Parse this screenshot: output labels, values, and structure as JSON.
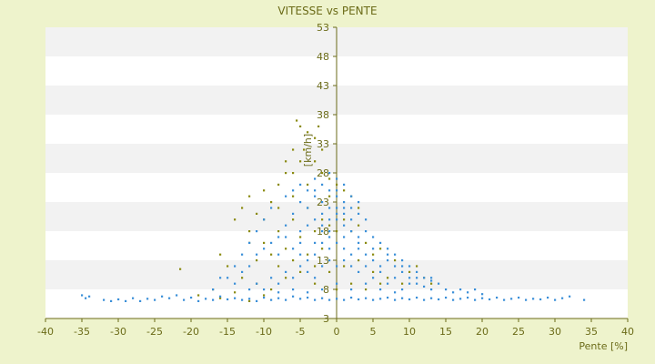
{
  "chart_data": {
    "type": "scatter",
    "title": "VITESSE vs PENTE",
    "xlabel": "Pente [%]",
    "ylabel": "[km/h]",
    "xlim": [
      -40,
      40
    ],
    "ylim": [
      3,
      53
    ],
    "x_ticks": [
      "-40",
      "-35",
      "-30",
      "-25",
      "-20",
      "-15",
      "-10",
      "-5",
      "0",
      "5",
      "10",
      "15",
      "20",
      "25",
      "30",
      "35",
      "40"
    ],
    "y_ticks": [
      "3",
      "8",
      "13",
      "18",
      "23",
      "28",
      "33",
      "38",
      "43",
      "48",
      "53"
    ],
    "grid": "horizontal-bands",
    "colors": {
      "background": "#eef3cc",
      "plot_white": "#ffffff",
      "plot_band": "#f2f2f2",
      "axis": "#6b6b18",
      "series_blue": "#3a8fd8",
      "series_olive": "#8a8a10"
    },
    "series": [
      {
        "color": "#8a8a10",
        "points": [
          [
            -5.5,
            37
          ],
          [
            -5,
            36
          ],
          [
            -4,
            35
          ],
          [
            -3,
            34
          ],
          [
            -2.5,
            36
          ],
          [
            -4.5,
            32
          ],
          [
            -5,
            30
          ],
          [
            -6,
            28
          ],
          [
            -7,
            28
          ],
          [
            -3,
            30
          ],
          [
            -8,
            26
          ],
          [
            -10,
            25
          ],
          [
            -12,
            24
          ],
          [
            -13,
            22
          ],
          [
            -9,
            23
          ],
          [
            -11,
            21
          ],
          [
            -6,
            24
          ],
          [
            -4,
            26
          ],
          [
            -2,
            28
          ],
          [
            -1,
            27
          ],
          [
            0,
            26
          ],
          [
            1,
            25
          ],
          [
            2,
            24
          ],
          [
            3,
            22
          ],
          [
            -14,
            20
          ],
          [
            -12,
            18
          ],
          [
            -10,
            16
          ],
          [
            -8,
            18
          ],
          [
            -6,
            20
          ],
          [
            -4,
            22
          ],
          [
            -2,
            20
          ],
          [
            0,
            18
          ],
          [
            2,
            18
          ],
          [
            4,
            16
          ],
          [
            6,
            15
          ],
          [
            8,
            13
          ],
          [
            10,
            11
          ],
          [
            12,
            10
          ],
          [
            -8,
            12
          ],
          [
            -6,
            13
          ],
          [
            -4,
            14
          ],
          [
            -2,
            15
          ],
          [
            -15,
            12
          ],
          [
            -13,
            10
          ],
          [
            -11,
            9
          ],
          [
            -9,
            8
          ],
          [
            -7,
            10
          ],
          [
            -5,
            11
          ],
          [
            -3,
            12
          ],
          [
            -1,
            11
          ],
          [
            1,
            12
          ],
          [
            3,
            13
          ],
          [
            5,
            11
          ],
          [
            7,
            10
          ],
          [
            9,
            9
          ],
          [
            -21.5,
            11.5
          ],
          [
            -19,
            7
          ],
          [
            -17,
            8
          ],
          [
            -16,
            6.5
          ],
          [
            -14,
            7.5
          ],
          [
            -12,
            6
          ],
          [
            -10,
            7
          ],
          [
            -3,
            9
          ],
          [
            0,
            8
          ],
          [
            2,
            9
          ],
          [
            4,
            8
          ],
          [
            6,
            9
          ],
          [
            -7,
            15
          ],
          [
            -9,
            14
          ],
          [
            -11,
            13
          ],
          [
            -5,
            17
          ],
          [
            -3,
            18
          ],
          [
            -1,
            19
          ],
          [
            1,
            20
          ],
          [
            3,
            19
          ],
          [
            5,
            14
          ],
          [
            -6,
            32
          ],
          [
            -7,
            30
          ],
          [
            -2,
            32
          ],
          [
            -1,
            24
          ],
          [
            11,
            12
          ],
          [
            13,
            9
          ],
          [
            -10,
            20
          ],
          [
            -12,
            16
          ],
          [
            -8,
            22
          ],
          [
            -16,
            14
          ]
        ]
      },
      {
        "color": "#3a8fd8",
        "points": [
          [
            -35,
            7
          ],
          [
            -34.5,
            6.5
          ],
          [
            -34,
            6.8
          ],
          [
            -32,
            6.2
          ],
          [
            -31,
            6
          ],
          [
            -30,
            6.3
          ],
          [
            -29,
            6
          ],
          [
            -28,
            6.5
          ],
          [
            -27,
            6
          ],
          [
            -26,
            6.4
          ],
          [
            -25,
            6.2
          ],
          [
            -24,
            6.8
          ],
          [
            -23,
            6.5
          ],
          [
            -22,
            7
          ],
          [
            -21,
            6.2
          ],
          [
            -20,
            6.6
          ],
          [
            -19,
            6
          ],
          [
            -18,
            6.4
          ],
          [
            -17,
            6.2
          ],
          [
            -16,
            6.8
          ],
          [
            -15,
            6.3
          ],
          [
            -14,
            6.5
          ],
          [
            -13,
            6.2
          ],
          [
            -12,
            6.4
          ],
          [
            -11,
            6
          ],
          [
            -10,
            6.6
          ],
          [
            -9,
            6.2
          ],
          [
            -8,
            6.5
          ],
          [
            -7,
            6.2
          ],
          [
            -6,
            6.8
          ],
          [
            -5,
            6.4
          ],
          [
            -4,
            6.6
          ],
          [
            -3,
            6.2
          ],
          [
            -2,
            6.5
          ],
          [
            -1,
            6.2
          ],
          [
            0,
            6.4
          ],
          [
            1,
            6.2
          ],
          [
            2,
            6.6
          ],
          [
            3,
            6.3
          ],
          [
            4,
            6.5
          ],
          [
            5,
            6.2
          ],
          [
            6,
            6.4
          ],
          [
            7,
            6.6
          ],
          [
            8,
            6.2
          ],
          [
            9,
            6.5
          ],
          [
            10,
            6.3
          ],
          [
            11,
            6.6
          ],
          [
            12,
            6.2
          ],
          [
            13,
            6.5
          ],
          [
            14,
            6.3
          ],
          [
            15,
            6.6
          ],
          [
            16,
            6.2
          ],
          [
            17,
            6.4
          ],
          [
            18,
            6.6
          ],
          [
            19,
            6.2
          ],
          [
            20,
            6.5
          ],
          [
            21,
            6.3
          ],
          [
            22,
            6.6
          ],
          [
            23,
            6.2
          ],
          [
            24,
            6.4
          ],
          [
            25,
            6.6
          ],
          [
            26,
            6.2
          ],
          [
            27,
            6.4
          ],
          [
            28,
            6.3
          ],
          [
            29,
            6.6
          ],
          [
            30,
            6.2
          ],
          [
            31,
            6.5
          ],
          [
            32,
            6.8
          ],
          [
            34,
            6.2
          ],
          [
            -15,
            10
          ],
          [
            -14,
            12
          ],
          [
            -13,
            14
          ],
          [
            -12,
            16
          ],
          [
            -11,
            18
          ],
          [
            -10,
            20
          ],
          [
            -9,
            22
          ],
          [
            -8,
            17
          ],
          [
            -7,
            19
          ],
          [
            -6,
            21
          ],
          [
            -5,
            23
          ],
          [
            -4,
            25
          ],
          [
            -3,
            24
          ],
          [
            -2,
            23
          ],
          [
            -1,
            22
          ],
          [
            0,
            24
          ],
          [
            1,
            23
          ],
          [
            2,
            22
          ],
          [
            3,
            21
          ],
          [
            4,
            20
          ],
          [
            -5,
            18
          ],
          [
            -4,
            19
          ],
          [
            -3,
            20
          ],
          [
            -2,
            19
          ],
          [
            -1,
            18
          ],
          [
            0,
            20
          ],
          [
            1,
            19
          ],
          [
            2,
            18
          ],
          [
            3,
            17
          ],
          [
            4,
            18
          ],
          [
            5,
            17
          ],
          [
            6,
            16
          ],
          [
            7,
            15
          ],
          [
            8,
            14
          ],
          [
            9,
            13
          ],
          [
            10,
            12
          ],
          [
            11,
            11
          ],
          [
            12,
            10
          ],
          [
            13,
            9.5
          ],
          [
            14,
            9
          ],
          [
            -6,
            15
          ],
          [
            -5,
            14
          ],
          [
            -4,
            13
          ],
          [
            -3,
            14
          ],
          [
            -2,
            16
          ],
          [
            -1,
            17
          ],
          [
            0,
            16
          ],
          [
            1,
            15
          ],
          [
            2,
            14
          ],
          [
            3,
            15
          ],
          [
            4,
            14
          ],
          [
            5,
            13
          ],
          [
            6,
            12
          ],
          [
            7,
            13
          ],
          [
            8,
            12
          ],
          [
            9,
            11
          ],
          [
            10,
            10
          ],
          [
            11,
            9
          ],
          [
            12,
            8.5
          ],
          [
            13,
            8
          ],
          [
            -9,
            10
          ],
          [
            -8,
            9
          ],
          [
            -7,
            11
          ],
          [
            -6,
            10
          ],
          [
            -5,
            12
          ],
          [
            -4,
            11
          ],
          [
            -3,
            10
          ],
          [
            -2,
            12
          ],
          [
            -1,
            13
          ],
          [
            0,
            12
          ],
          [
            1,
            13
          ],
          [
            2,
            12
          ],
          [
            3,
            11
          ],
          [
            4,
            12
          ],
          [
            5,
            10
          ],
          [
            6,
            11
          ],
          [
            7,
            9
          ],
          [
            8,
            10
          ],
          [
            9,
            8
          ],
          [
            10,
            9
          ],
          [
            -12,
            8
          ],
          [
            -11,
            9
          ],
          [
            -10,
            8
          ],
          [
            -8,
            7.5
          ],
          [
            -6,
            8
          ],
          [
            -4,
            7.5
          ],
          [
            -2,
            8
          ],
          [
            0,
            9
          ],
          [
            2,
            8
          ],
          [
            4,
            9
          ],
          [
            6,
            8
          ],
          [
            8,
            7.5
          ],
          [
            15,
            8
          ],
          [
            16,
            7.5
          ],
          [
            17,
            8
          ],
          [
            18,
            7.5
          ],
          [
            19,
            8
          ],
          [
            20,
            7.2
          ],
          [
            -3,
            27
          ],
          [
            -2,
            26
          ],
          [
            -1,
            28
          ],
          [
            0,
            25
          ],
          [
            1,
            26
          ],
          [
            2,
            24
          ],
          [
            3,
            23
          ],
          [
            -4,
            22
          ],
          [
            -2,
            21
          ],
          [
            0,
            21
          ],
          [
            1,
            21
          ],
          [
            2,
            20
          ],
          [
            -7,
            24
          ],
          [
            -6,
            25
          ],
          [
            -5,
            26
          ],
          [
            -3,
            25
          ],
          [
            -1,
            25
          ],
          [
            0,
            27
          ],
          [
            -8,
            14
          ],
          [
            -10,
            15
          ],
          [
            -12,
            12
          ],
          [
            -14,
            9
          ],
          [
            -16,
            10
          ],
          [
            -17,
            8
          ],
          [
            -13,
            11
          ],
          [
            -11,
            14
          ],
          [
            -9,
            16
          ],
          [
            -7,
            17
          ],
          [
            -5,
            16
          ],
          [
            -3,
            16
          ],
          [
            -1,
            15
          ],
          [
            1,
            17
          ],
          [
            3,
            16
          ],
          [
            5,
            15
          ],
          [
            7,
            14
          ],
          [
            9,
            12
          ],
          [
            11,
            10
          ],
          [
            13,
            10
          ],
          [
            -2,
            18
          ],
          [
            -1,
            20
          ],
          [
            0,
            22
          ],
          [
            1,
            22
          ]
        ]
      }
    ]
  }
}
